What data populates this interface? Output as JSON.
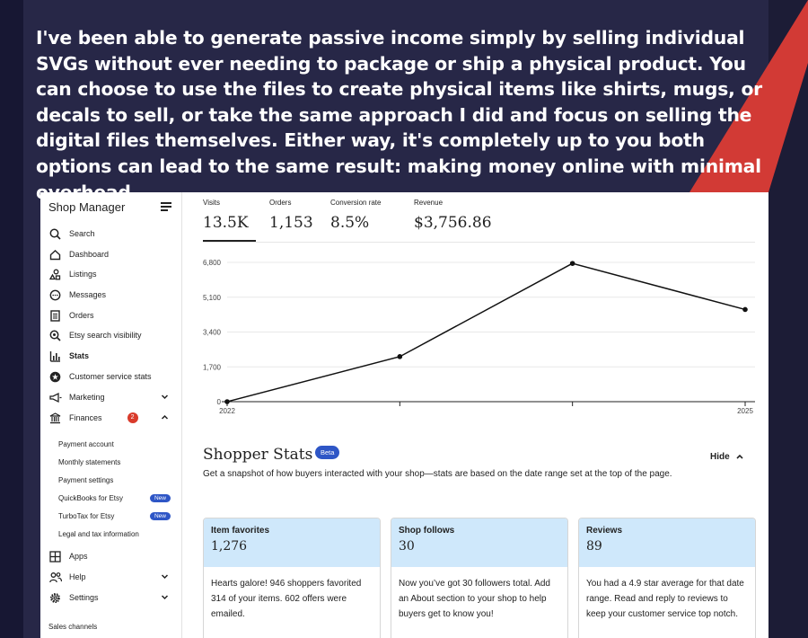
{
  "headline": "I've been able to generate passive income simply by selling individual SVGs without ever needing to package or ship a physical product. You can choose to use the files to create physical items like shirts, mugs, or decals to sell, or take the same approach I did and focus on selling the digital files themselves. Either way, it's completely up to you both options can lead to the same result: making money online with minimal overhead.",
  "sidebar": {
    "title": "Shop Manager",
    "items": [
      {
        "label": "Search",
        "icon": "search-icon"
      },
      {
        "label": "Dashboard",
        "icon": "home-icon"
      },
      {
        "label": "Listings",
        "icon": "shapes-icon"
      },
      {
        "label": "Messages",
        "icon": "chat-icon"
      },
      {
        "label": "Orders",
        "icon": "document-icon"
      },
      {
        "label": "Etsy search visibility",
        "icon": "search-gear-icon"
      },
      {
        "label": "Stats",
        "icon": "bar-chart-icon"
      },
      {
        "label": "Customer service stats",
        "icon": "star-badge-icon"
      },
      {
        "label": "Marketing",
        "icon": "megaphone-icon"
      },
      {
        "label": "Finances",
        "icon": "bank-icon",
        "badge": "2"
      }
    ],
    "finance_subitems": [
      {
        "label": "Payment account"
      },
      {
        "label": "Monthly statements"
      },
      {
        "label": "Payment settings"
      },
      {
        "label": "QuickBooks for Etsy",
        "badge": "New"
      },
      {
        "label": "TurboTax for Etsy",
        "badge": "New"
      },
      {
        "label": "Legal and tax information"
      }
    ],
    "bottom_items": [
      {
        "label": "Apps",
        "icon": "grid-icon"
      },
      {
        "label": "Help",
        "icon": "people-icon"
      },
      {
        "label": "Settings",
        "icon": "gear-icon"
      }
    ],
    "footer": "Sales channels"
  },
  "metrics": [
    {
      "label": "Visits",
      "value": "13.5K"
    },
    {
      "label": "Orders",
      "value": "1,153"
    },
    {
      "label": "Conversion rate",
      "value": "8.5%"
    },
    {
      "label": "Revenue",
      "value": "$3,756.86"
    }
  ],
  "chart_data": {
    "type": "line",
    "x_labels": [
      "2022",
      "2025"
    ],
    "x": [
      0,
      1,
      2,
      3
    ],
    "values": [
      0,
      2200,
      6750,
      4500
    ],
    "y_ticks": [
      "0",
      "1,700",
      "3,400",
      "5,100",
      "6,800"
    ],
    "ylim": [
      0,
      6800
    ],
    "grid": true
  },
  "shopper_stats": {
    "title": "Shopper Stats",
    "badge": "Beta",
    "hide_label": "Hide",
    "description": "Get a snapshot of how buyers interacted with your shop—stats are based on the date range set at the top of the page.",
    "cards": [
      {
        "label": "Item favorites",
        "value": "1,276",
        "text": "Hearts galore! 946 shoppers favorited 314 of your items. 602 offers were emailed."
      },
      {
        "label": "Shop follows",
        "value": "30",
        "text": "Now you’ve got 30 followers total. Add an About section to your shop to help buyers get to know you!"
      },
      {
        "label": "Reviews",
        "value": "89",
        "text": "You had a 4.9 star average for that date range. Read and reply to reviews to keep your customer service top notch."
      }
    ]
  },
  "colors": {
    "background": "#272747",
    "accent_red": "#d23a35",
    "brand_blue": "#2e56c6",
    "card_header": "#cfe8fb"
  }
}
